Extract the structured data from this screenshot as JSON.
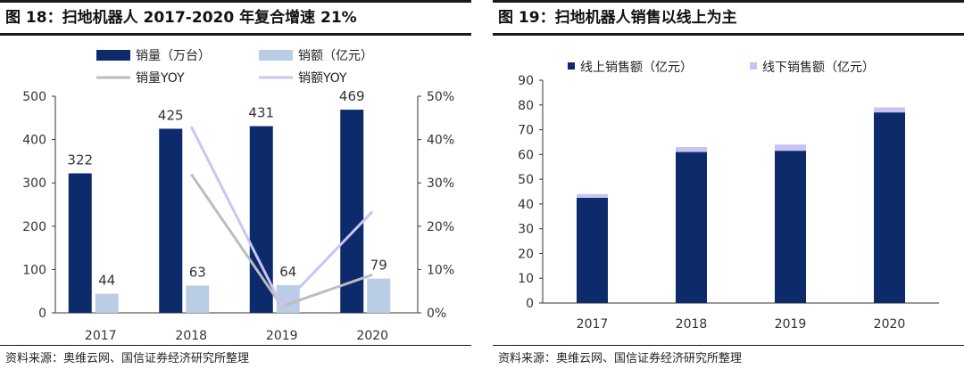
{
  "figures": [
    {
      "title": "图 18：扫地机器人 2017-2020 年复合增速 21%",
      "source": "资料来源：奥维云网、国信证券经济研究所整理"
    },
    {
      "title": "图 19：扫地机器人销售以线上为主",
      "source": "资料来源：奥维云网、国信证券经济研究所整理"
    }
  ],
  "colors": {
    "navy": "#0d2a6b",
    "light_blue": "#b9cde4",
    "gray_line": "#bdbdbd",
    "lavender_line": "#c9c5f5",
    "lavender_bar": "#c7c3f2",
    "axis": "#333333"
  },
  "chart_data": [
    {
      "type": "bar",
      "categories": [
        "2017",
        "2018",
        "2019",
        "2020"
      ],
      "series": [
        {
          "name": "销量（万台）",
          "kind": "bar",
          "axis": "left",
          "values": [
            322,
            425,
            431,
            469
          ],
          "labels": [
            "322",
            "425",
            "431",
            "469"
          ]
        },
        {
          "name": "销额（亿元）",
          "kind": "bar",
          "axis": "left",
          "values": [
            44,
            63,
            64,
            79
          ],
          "labels": [
            "44",
            "63",
            "64",
            "79"
          ]
        },
        {
          "name": "销量YOY",
          "kind": "line",
          "axis": "right",
          "values": [
            null,
            0.32,
            0.015,
            0.088
          ]
        },
        {
          "name": "销额YOY",
          "kind": "line",
          "axis": "right",
          "values": [
            null,
            0.43,
            0.016,
            0.234
          ]
        }
      ],
      "left_axis": {
        "min": 0,
        "max": 500,
        "ticks": [
          "0",
          "100",
          "200",
          "300",
          "400",
          "500"
        ]
      },
      "right_axis": {
        "min": 0,
        "max": 0.5,
        "ticks": [
          "0%",
          "10%",
          "20%",
          "30%",
          "40%",
          "50%"
        ]
      },
      "legend": [
        "销量（万台）",
        "销额（亿元）",
        "销量YOY",
        "销额YOY"
      ],
      "legend_position": "top"
    },
    {
      "type": "bar",
      "stacked": true,
      "categories": [
        "2017",
        "2018",
        "2019",
        "2020"
      ],
      "series": [
        {
          "name": "线上销售额（亿元）",
          "values": [
            42.5,
            61,
            61.5,
            77
          ]
        },
        {
          "name": "线下销售额（亿元）",
          "values": [
            1.5,
            2,
            2.5,
            2
          ]
        }
      ],
      "y_axis": {
        "min": 0,
        "max": 90,
        "ticks": [
          "0",
          "10",
          "20",
          "30",
          "40",
          "50",
          "60",
          "70",
          "80",
          "90"
        ]
      },
      "legend": [
        "线上销售额（亿元）",
        "线下销售额（亿元）"
      ],
      "legend_position": "top"
    }
  ]
}
